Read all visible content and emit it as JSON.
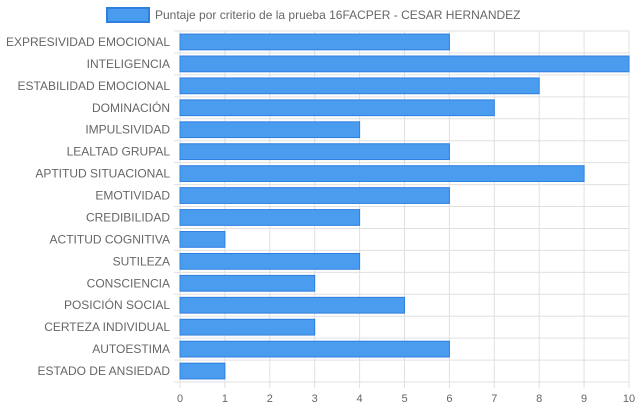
{
  "chart_data": {
    "type": "bar",
    "orientation": "horizontal",
    "legend": {
      "label": "Puntaje por criterio de la prueba 16FACPER - CESAR HERNANDEZ",
      "placement": "top-center"
    },
    "categories": [
      "EXPRESIVIDAD EMOCIONAL",
      "INTELIGENCIA",
      "ESTABILIDAD EMOCIONAL",
      "DOMINACIÓN",
      "IMPULSIVIDAD",
      "LEALTAD GRUPAL",
      "APTITUD SITUACIONAL",
      "EMOTIVIDAD",
      "CREDIBILIDAD",
      "ACTITUD COGNITIVA",
      "SUTILEZA",
      "CONSCIENCIA",
      "POSICIÓN SOCIAL",
      "CERTEZA INDIVIDUAL",
      "AUTOESTIMA",
      "ESTADO DE ANSIEDAD"
    ],
    "series": [
      {
        "name": "Puntaje por criterio de la prueba 16FACPER - CESAR HERNANDEZ",
        "values": [
          6,
          10,
          8,
          7,
          4,
          6,
          9,
          6,
          4,
          1,
          4,
          3,
          5,
          3,
          6,
          1
        ]
      }
    ],
    "xlim": [
      0,
      10
    ],
    "xticks": [
      "0",
      "1",
      "2",
      "3",
      "4",
      "5",
      "6",
      "7",
      "8",
      "9",
      "10"
    ],
    "grid": true,
    "colors": {
      "bar_fill": "#4a9cee",
      "bar_stroke": "#2f7fe0",
      "grid": "#e0e0e0",
      "text": "#666666"
    }
  }
}
